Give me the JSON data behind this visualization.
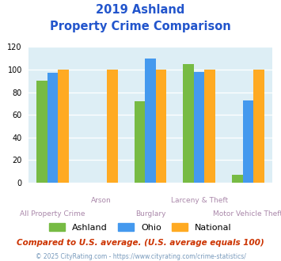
{
  "title_line1": "2019 Ashland",
  "title_line2": "Property Crime Comparison",
  "categories": [
    "All Property Crime",
    "Arson",
    "Burglary",
    "Larceny & Theft",
    "Motor Vehicle Theft"
  ],
  "ashland": [
    90,
    0,
    72,
    105,
    7
  ],
  "ohio": [
    97,
    0,
    110,
    98,
    73
  ],
  "national": [
    100,
    100,
    100,
    100,
    100
  ],
  "ashland_color": "#77bb44",
  "ohio_color": "#4499ee",
  "national_color": "#ffaa22",
  "bg_color": "#ddeef5",
  "title_color": "#2255cc",
  "ylabel_max": 120,
  "yticks": [
    0,
    20,
    40,
    60,
    80,
    100,
    120
  ],
  "footnote1": "Compared to U.S. average. (U.S. average equals 100)",
  "footnote2": "© 2025 CityRating.com - https://www.cityrating.com/crime-statistics/",
  "footnote1_color": "#cc3300",
  "footnote2_color": "#7799bb",
  "legend_labels": [
    "Ashland",
    "Ohio",
    "National"
  ],
  "xlabel_top_items": [
    "",
    "Arson",
    "",
    "Larceny & Theft",
    ""
  ],
  "xlabel_bot_items": [
    "All Property Crime",
    "",
    "Burglary",
    "",
    "Motor Vehicle Theft"
  ],
  "xlabel_color": "#aa88aa"
}
